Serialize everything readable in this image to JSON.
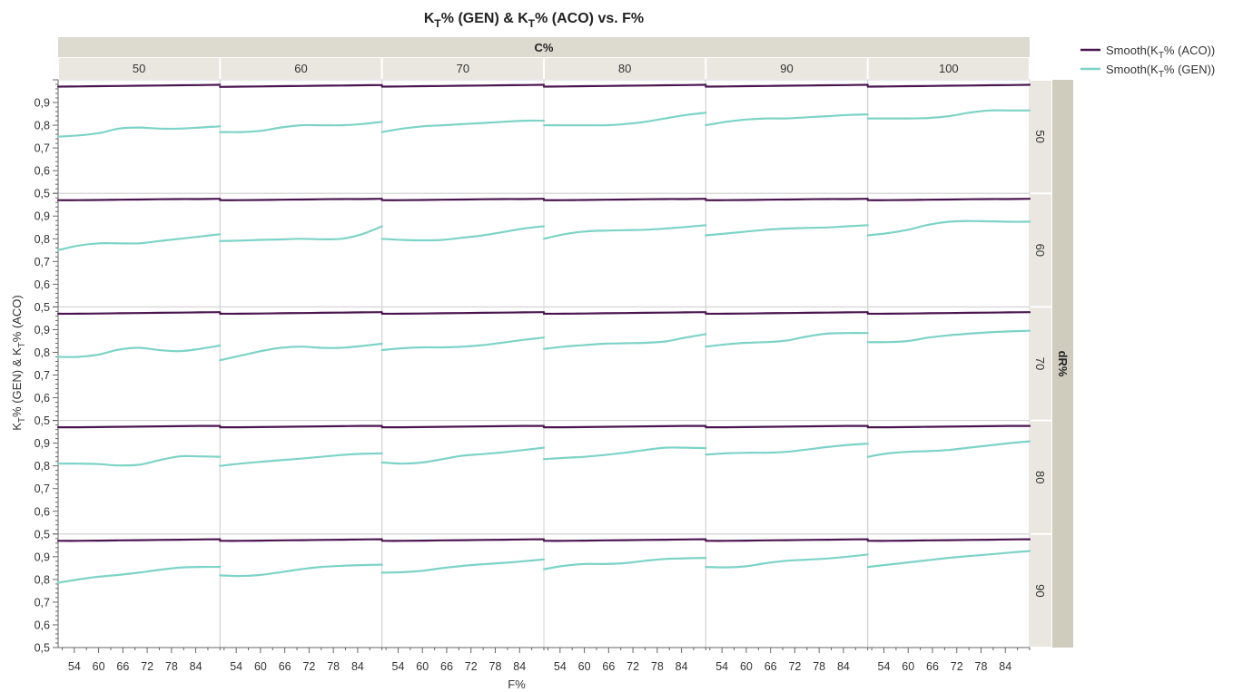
{
  "chart_data": {
    "type": "line",
    "title": "K_T% (GEN) & K_T% (ACO) vs. F%",
    "title_parts": {
      "a": "K",
      "a_sub": "T",
      "b": "% (GEN) & K",
      "b_sub": "T",
      "c": "% (ACO) vs. F%"
    },
    "xlabel": "F%",
    "ylabel": "K_T% (GEN) & K_T% (ACO)",
    "ylabel_parts": {
      "a": "K",
      "a_sub": "T",
      "b": "% (GEN) & K",
      "b_sub": "T",
      "c": "% (ACO)"
    },
    "col_group_label": "C%",
    "col_values": [
      "50",
      "60",
      "70",
      "80",
      "90",
      "100"
    ],
    "row_group_label": "dR%",
    "row_values": [
      "50",
      "60",
      "70",
      "80",
      "90"
    ],
    "xlim": [
      50,
      90
    ],
    "xticks": [
      "54",
      "60",
      "66",
      "72",
      "78",
      "84"
    ],
    "ylim": [
      0.5,
      1.0
    ],
    "yticks": [
      "0,5",
      "0,6",
      "0,7",
      "0,8",
      "0,9"
    ],
    "x": [
      50,
      55,
      60,
      65,
      70,
      75,
      80,
      85,
      90
    ],
    "grid": false,
    "legend_position": "top-right",
    "legend": [
      {
        "label_parts": {
          "a": "Smooth(K",
          "sub": "T",
          "b": "% (ACO))"
        },
        "color": "#4b1650"
      },
      {
        "label_parts": {
          "a": "Smooth(K",
          "sub": "T",
          "b": "% (GEN))"
        },
        "color": "#7dd3c7"
      }
    ],
    "series": [
      {
        "name": "Smooth(K_T% (ACO))",
        "color": "#4b1650",
        "values": [
          [
            [
              0.97,
              0.971,
              0.972,
              0.973,
              0.974,
              0.975,
              0.976,
              0.977,
              0.978
            ],
            [
              0.969,
              0.97,
              0.971,
              0.972,
              0.973,
              0.974,
              0.975,
              0.976,
              0.977
            ],
            [
              0.97,
              0.971,
              0.972,
              0.973,
              0.974,
              0.975,
              0.976,
              0.977,
              0.978
            ],
            [
              0.97,
              0.971,
              0.972,
              0.973,
              0.974,
              0.975,
              0.976,
              0.977,
              0.978
            ],
            [
              0.97,
              0.971,
              0.972,
              0.973,
              0.974,
              0.975,
              0.976,
              0.977,
              0.978
            ],
            [
              0.97,
              0.971,
              0.972,
              0.973,
              0.974,
              0.975,
              0.976,
              0.977,
              0.978
            ]
          ],
          [
            [
              0.97,
              0.97,
              0.971,
              0.972,
              0.973,
              0.974,
              0.975,
              0.975,
              0.976
            ],
            [
              0.97,
              0.97,
              0.971,
              0.972,
              0.973,
              0.974,
              0.975,
              0.975,
              0.976
            ],
            [
              0.97,
              0.97,
              0.971,
              0.972,
              0.973,
              0.974,
              0.975,
              0.975,
              0.976
            ],
            [
              0.97,
              0.97,
              0.971,
              0.972,
              0.973,
              0.974,
              0.975,
              0.975,
              0.976
            ],
            [
              0.97,
              0.97,
              0.971,
              0.972,
              0.973,
              0.974,
              0.975,
              0.975,
              0.976
            ],
            [
              0.97,
              0.97,
              0.971,
              0.972,
              0.973,
              0.974,
              0.975,
              0.975,
              0.976
            ]
          ],
          [
            [
              0.97,
              0.97,
              0.971,
              0.972,
              0.973,
              0.974,
              0.975,
              0.976,
              0.977
            ],
            [
              0.97,
              0.97,
              0.971,
              0.972,
              0.973,
              0.974,
              0.975,
              0.976,
              0.977
            ],
            [
              0.97,
              0.97,
              0.971,
              0.972,
              0.973,
              0.974,
              0.975,
              0.976,
              0.977
            ],
            [
              0.97,
              0.97,
              0.971,
              0.972,
              0.973,
              0.974,
              0.975,
              0.976,
              0.977
            ],
            [
              0.97,
              0.97,
              0.971,
              0.972,
              0.973,
              0.974,
              0.975,
              0.976,
              0.977
            ],
            [
              0.97,
              0.97,
              0.971,
              0.972,
              0.973,
              0.974,
              0.975,
              0.976,
              0.977
            ]
          ],
          [
            [
              0.97,
              0.97,
              0.971,
              0.972,
              0.973,
              0.974,
              0.975,
              0.976,
              0.976
            ],
            [
              0.97,
              0.97,
              0.971,
              0.972,
              0.973,
              0.974,
              0.975,
              0.976,
              0.976
            ],
            [
              0.97,
              0.97,
              0.971,
              0.972,
              0.973,
              0.974,
              0.975,
              0.976,
              0.976
            ],
            [
              0.97,
              0.97,
              0.971,
              0.972,
              0.973,
              0.974,
              0.975,
              0.976,
              0.976
            ],
            [
              0.97,
              0.97,
              0.971,
              0.972,
              0.973,
              0.974,
              0.975,
              0.976,
              0.976
            ],
            [
              0.97,
              0.97,
              0.971,
              0.972,
              0.973,
              0.974,
              0.975,
              0.976,
              0.976
            ]
          ],
          [
            [
              0.97,
              0.97,
              0.971,
              0.972,
              0.973,
              0.974,
              0.975,
              0.976,
              0.977
            ],
            [
              0.97,
              0.97,
              0.971,
              0.972,
              0.973,
              0.974,
              0.975,
              0.976,
              0.977
            ],
            [
              0.97,
              0.97,
              0.971,
              0.972,
              0.973,
              0.974,
              0.975,
              0.976,
              0.977
            ],
            [
              0.97,
              0.97,
              0.971,
              0.972,
              0.973,
              0.974,
              0.975,
              0.976,
              0.977
            ],
            [
              0.97,
              0.97,
              0.971,
              0.972,
              0.973,
              0.974,
              0.975,
              0.976,
              0.977
            ],
            [
              0.97,
              0.97,
              0.971,
              0.972,
              0.973,
              0.974,
              0.975,
              0.976,
              0.977
            ]
          ]
        ]
      },
      {
        "name": "Smooth(K_T% (GEN))",
        "color": "#7dd3c7",
        "values": [
          [
            [
              0.75,
              0.755,
              0.765,
              0.785,
              0.79,
              0.785,
              0.785,
              0.79,
              0.795
            ],
            [
              0.77,
              0.77,
              0.775,
              0.79,
              0.8,
              0.8,
              0.8,
              0.805,
              0.815
            ],
            [
              0.77,
              0.785,
              0.795,
              0.8,
              0.805,
              0.81,
              0.815,
              0.82,
              0.82
            ],
            [
              0.8,
              0.8,
              0.8,
              0.8,
              0.805,
              0.815,
              0.83,
              0.845,
              0.855
            ],
            [
              0.8,
              0.815,
              0.825,
              0.83,
              0.83,
              0.835,
              0.84,
              0.845,
              0.848
            ],
            [
              0.83,
              0.83,
              0.83,
              0.832,
              0.84,
              0.855,
              0.865,
              0.865,
              0.865
            ]
          ],
          [
            [
              0.75,
              0.77,
              0.78,
              0.78,
              0.78,
              0.79,
              0.8,
              0.81,
              0.82
            ],
            [
              0.79,
              0.792,
              0.795,
              0.797,
              0.8,
              0.798,
              0.8,
              0.82,
              0.855
            ],
            [
              0.8,
              0.795,
              0.793,
              0.795,
              0.805,
              0.815,
              0.83,
              0.845,
              0.855
            ],
            [
              0.8,
              0.82,
              0.832,
              0.836,
              0.838,
              0.84,
              0.845,
              0.852,
              0.86
            ],
            [
              0.815,
              0.823,
              0.832,
              0.84,
              0.845,
              0.848,
              0.85,
              0.855,
              0.86
            ],
            [
              0.815,
              0.825,
              0.84,
              0.862,
              0.875,
              0.878,
              0.877,
              0.875,
              0.875
            ]
          ],
          [
            [
              0.78,
              0.78,
              0.79,
              0.812,
              0.82,
              0.81,
              0.805,
              0.815,
              0.83
            ],
            [
              0.765,
              0.785,
              0.805,
              0.82,
              0.825,
              0.82,
              0.82,
              0.828,
              0.838
            ],
            [
              0.81,
              0.818,
              0.822,
              0.822,
              0.825,
              0.832,
              0.843,
              0.855,
              0.865
            ],
            [
              0.815,
              0.825,
              0.832,
              0.838,
              0.84,
              0.842,
              0.848,
              0.865,
              0.88
            ],
            [
              0.825,
              0.835,
              0.842,
              0.845,
              0.852,
              0.87,
              0.882,
              0.885,
              0.885
            ],
            [
              0.845,
              0.845,
              0.85,
              0.865,
              0.875,
              0.882,
              0.888,
              0.892,
              0.895
            ]
          ],
          [
            [
              0.81,
              0.81,
              0.808,
              0.802,
              0.805,
              0.825,
              0.842,
              0.842,
              0.84
            ],
            [
              0.8,
              0.81,
              0.818,
              0.825,
              0.832,
              0.84,
              0.848,
              0.853,
              0.855
            ],
            [
              0.815,
              0.81,
              0.815,
              0.83,
              0.845,
              0.852,
              0.86,
              0.87,
              0.88
            ],
            [
              0.83,
              0.835,
              0.84,
              0.848,
              0.858,
              0.87,
              0.88,
              0.88,
              0.878
            ],
            [
              0.85,
              0.855,
              0.858,
              0.858,
              0.862,
              0.872,
              0.883,
              0.892,
              0.898
            ],
            [
              0.84,
              0.855,
              0.862,
              0.865,
              0.87,
              0.88,
              0.89,
              0.9,
              0.908
            ]
          ],
          [
            [
              0.785,
              0.8,
              0.812,
              0.82,
              0.83,
              0.842,
              0.852,
              0.855,
              0.855
            ],
            [
              0.818,
              0.815,
              0.82,
              0.832,
              0.845,
              0.855,
              0.86,
              0.863,
              0.865
            ],
            [
              0.83,
              0.832,
              0.838,
              0.85,
              0.86,
              0.867,
              0.873,
              0.88,
              0.888
            ],
            [
              0.845,
              0.86,
              0.868,
              0.868,
              0.872,
              0.882,
              0.89,
              0.893,
              0.895
            ],
            [
              0.855,
              0.853,
              0.858,
              0.872,
              0.882,
              0.887,
              0.892,
              0.9,
              0.91
            ],
            [
              0.855,
              0.865,
              0.875,
              0.885,
              0.895,
              0.903,
              0.91,
              0.918,
              0.925
            ]
          ]
        ]
      }
    ]
  }
}
